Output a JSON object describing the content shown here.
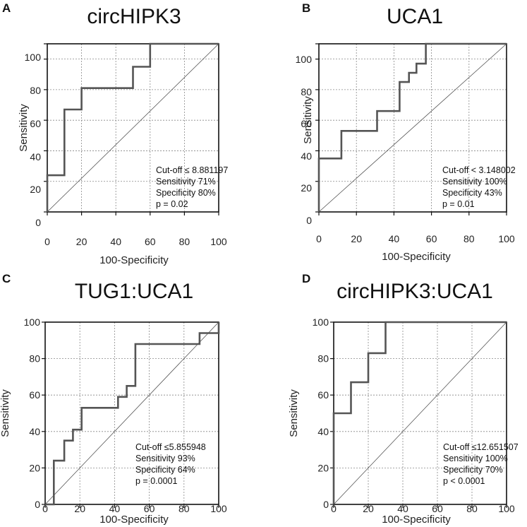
{
  "chart_data": [
    {
      "type": "line",
      "panel": "A",
      "title": "circHIPK3",
      "xlabel": "100-Specificity",
      "ylabel": "Sensitivity",
      "xlim": [
        0,
        100
      ],
      "ylim": [
        0,
        110
      ],
      "x_ticks": [
        0,
        20,
        40,
        60,
        80,
        100
      ],
      "y_ticks": [
        0,
        20,
        40,
        60,
        80,
        100
      ],
      "series": [
        {
          "x": [
            0,
            0,
            10,
            10,
            20,
            20,
            50,
            50,
            60,
            60,
            100
          ],
          "y": [
            0,
            24,
            24,
            67,
            67,
            81,
            81,
            95,
            95,
            110,
            110
          ]
        }
      ],
      "annotation": [
        "Cut-off ≤ 8.881197",
        "Sensitivity 71%",
        "Specificity 80%",
        "p = 0.02"
      ]
    },
    {
      "type": "line",
      "panel": "B",
      "title": "UCA1",
      "xlabel": "100-Specificity",
      "ylabel": "Sensitivity",
      "xlim": [
        0,
        100
      ],
      "ylim": [
        0,
        110
      ],
      "x_ticks": [
        0,
        20,
        40,
        60,
        80,
        100
      ],
      "y_ticks": [
        0,
        20,
        40,
        60,
        80,
        100
      ],
      "series": [
        {
          "x": [
            0,
            0,
            12,
            12,
            31,
            31,
            43,
            43,
            48,
            48,
            52,
            52,
            57,
            57,
            100
          ],
          "y": [
            0,
            35,
            35,
            53,
            53,
            66,
            66,
            85,
            85,
            91,
            91,
            97,
            97,
            110,
            110
          ]
        }
      ],
      "annotation": [
        "Cut-off < 3.148002",
        "Sensitivity 100%",
        "Specificity 43%",
        "p = 0.01"
      ]
    },
    {
      "type": "line",
      "panel": "C",
      "title": "TUG1:UCA1",
      "xlabel": "100-Specificity",
      "ylabel": "Sensitivity",
      "xlim": [
        0,
        100
      ],
      "ylim": [
        0,
        100
      ],
      "x_ticks": [
        0,
        20,
        40,
        60,
        80,
        100
      ],
      "y_ticks": [
        0,
        20,
        40,
        60,
        80,
        100
      ],
      "series": [
        {
          "x": [
            0,
            5,
            5,
            11,
            11,
            16,
            16,
            21,
            21,
            42,
            42,
            47,
            47,
            52,
            52,
            89,
            89,
            95,
            95,
            100,
            100
          ],
          "y": [
            0,
            0,
            24,
            24,
            35,
            35,
            41,
            41,
            53,
            53,
            59,
            59,
            65,
            65,
            88,
            88,
            94,
            94,
            94,
            94,
            100
          ]
        }
      ],
      "annotation": [
        "Cut-off ≤5.855948",
        "Sensitivity 93%",
        "Specificity 64%",
        "p = 0.0001"
      ]
    },
    {
      "type": "line",
      "panel": "D",
      "title": "circHIPK3:UCA1",
      "xlabel": "100-Specificity",
      "ylabel": "Sensitivity",
      "xlim": [
        0,
        100
      ],
      "ylim": [
        0,
        100
      ],
      "x_ticks": [
        0,
        20,
        40,
        60,
        80,
        100
      ],
      "y_ticks": [
        0,
        20,
        40,
        60,
        80,
        100
      ],
      "series": [
        {
          "x": [
            0,
            0,
            10,
            10,
            20,
            20,
            30,
            30,
            100
          ],
          "y": [
            0,
            50,
            50,
            67,
            67,
            83,
            83,
            100,
            100
          ]
        }
      ],
      "annotation": [
        "Cut-off ≤12.651507",
        "Sensitivity 100%",
        "Specificity 70%",
        "p < 0.0001"
      ]
    }
  ]
}
